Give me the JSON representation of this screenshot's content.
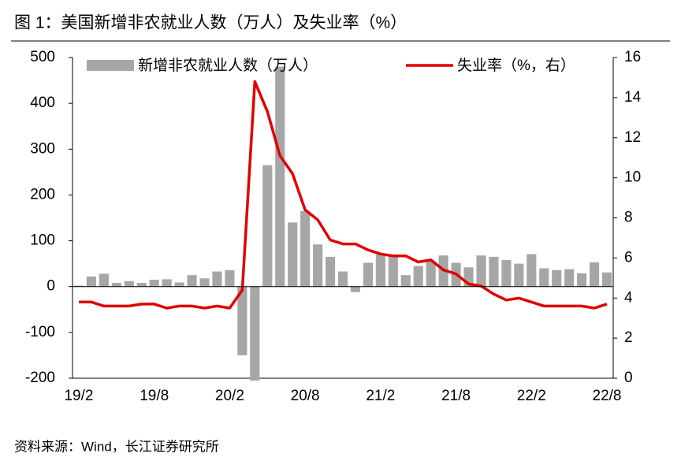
{
  "title": "图 1：美国新增非农就业人数（万人）及失业率（%）",
  "source": "资料来源：Wind，长江证券研究所",
  "chart_data": {
    "type": "bar-line",
    "categories": [
      "19/2",
      null,
      null,
      null,
      null,
      null,
      "19/8",
      null,
      null,
      null,
      null,
      null,
      "20/2",
      null,
      null,
      null,
      null,
      null,
      "20/8",
      null,
      null,
      null,
      null,
      null,
      "21/2",
      null,
      null,
      null,
      null,
      null,
      "21/8",
      null,
      null,
      null,
      null,
      null,
      "22/2",
      null,
      null,
      null,
      null,
      null,
      "22/8"
    ],
    "series": [
      {
        "name": "新增非农就业人数（万人）",
        "type": "bar",
        "color": "#a6a6a6",
        "values": [
          2,
          22,
          28,
          8,
          12,
          8,
          15,
          16,
          9,
          25,
          18,
          33,
          36,
          -150,
          -205,
          265,
          480,
          140,
          165,
          92,
          65,
          33,
          -12,
          52,
          70,
          70,
          25,
          45,
          55,
          68,
          52,
          42,
          68,
          65,
          58,
          50,
          71,
          40,
          36,
          38,
          29,
          53,
          31
        ]
      },
      {
        "name": "失业率（%，右）",
        "type": "line",
        "axis": "y2",
        "color": "#e00000",
        "values": [
          3.8,
          3.8,
          3.6,
          3.6,
          3.6,
          3.7,
          3.7,
          3.5,
          3.6,
          3.6,
          3.5,
          3.6,
          3.5,
          4.4,
          14.8,
          13.3,
          11.1,
          10.2,
          8.4,
          7.9,
          6.9,
          6.7,
          6.7,
          6.4,
          6.2,
          6.1,
          6.1,
          5.8,
          5.9,
          5.4,
          5.2,
          4.7,
          4.6,
          4.2,
          3.9,
          4.0,
          3.8,
          3.6,
          3.6,
          3.6,
          3.6,
          3.5,
          3.7
        ]
      }
    ],
    "ylim": [
      -200,
      500
    ],
    "yticks": [
      -200,
      -100,
      0,
      100,
      200,
      300,
      400,
      500
    ],
    "y2lim": [
      0,
      16
    ],
    "y2ticks": [
      0,
      2,
      4,
      6,
      8,
      10,
      12,
      14,
      16
    ]
  }
}
